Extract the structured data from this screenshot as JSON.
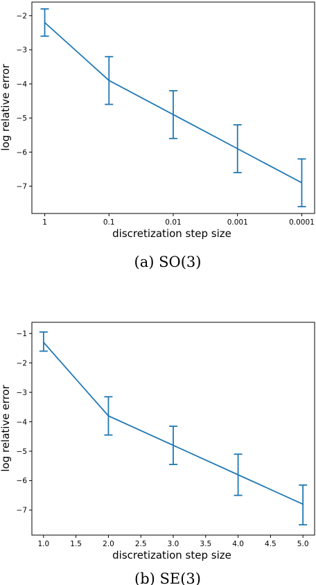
{
  "chart_data": [
    {
      "type": "line",
      "caption": "(a) SO(3)",
      "xlabel": "discretization step size",
      "ylabel": "log relative error",
      "categories": [
        "1",
        "0.1",
        "0.01",
        "0.001",
        "0.0001"
      ],
      "y": [
        -2.2,
        -3.9,
        -4.9,
        -5.9,
        -6.9
      ],
      "y_err": [
        [
          -2.6,
          -1.8
        ],
        [
          -4.6,
          -3.2
        ],
        [
          -5.6,
          -4.2
        ],
        [
          -6.6,
          -5.2
        ],
        [
          -7.6,
          -6.2
        ]
      ],
      "ylim": [
        -7.8,
        -1.6
      ],
      "yticks": [
        -2,
        -3,
        -4,
        -5,
        -6,
        -7
      ],
      "ytick_labels": [
        "−2",
        "−3",
        "−4",
        "−5",
        "−6",
        "−7"
      ],
      "color": "#1f77b4",
      "grid": false
    },
    {
      "type": "line",
      "caption": "(b) SE(3)",
      "xlabel": "discretization step size",
      "ylabel": "log relative error",
      "x": [
        1.0,
        2.0,
        3.0,
        4.0,
        5.0
      ],
      "y": [
        -1.3,
        -3.8,
        -4.8,
        -5.8,
        -6.8
      ],
      "y_err": [
        [
          -1.6,
          -0.95
        ],
        [
          -4.45,
          -3.15
        ],
        [
          -5.45,
          -4.15
        ],
        [
          -6.5,
          -5.1
        ],
        [
          -7.5,
          -6.15
        ]
      ],
      "xlim": [
        0.82,
        5.18
      ],
      "ylim": [
        -7.85,
        -0.62
      ],
      "xticks": [
        1.0,
        1.5,
        2.0,
        2.5,
        3.0,
        3.5,
        4.0,
        4.5,
        5.0
      ],
      "xtick_labels": [
        "1.0",
        "1.5",
        "2.0",
        "2.5",
        "3.0",
        "3.5",
        "4.0",
        "4.5",
        "5.0"
      ],
      "yticks": [
        -1,
        -2,
        -3,
        -4,
        -5,
        -6,
        -7
      ],
      "ytick_labels": [
        "−1",
        "−2",
        "−3",
        "−4",
        "−5",
        "−6",
        "−7"
      ],
      "color": "#1f77b4",
      "grid": false
    }
  ]
}
